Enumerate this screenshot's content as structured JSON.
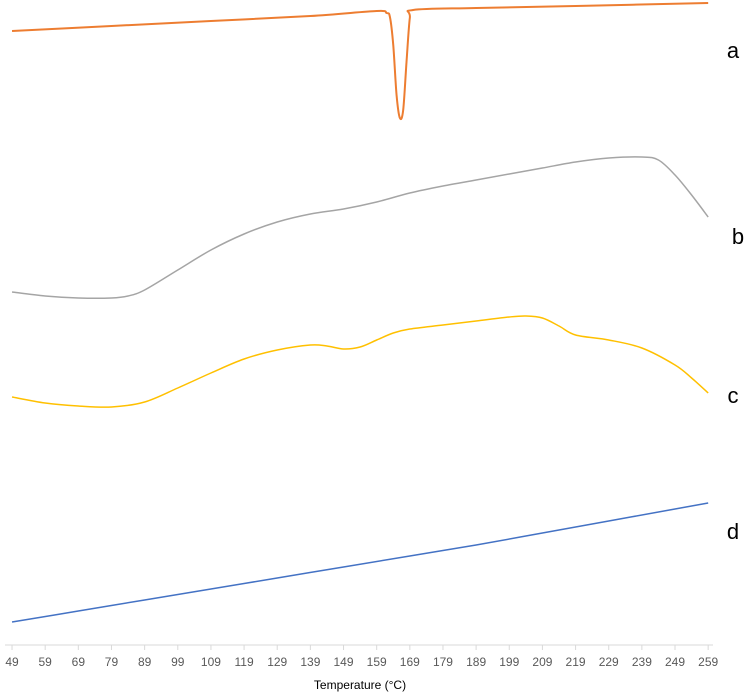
{
  "chart_data": {
    "type": "line",
    "x_label": "Temperature (°C)",
    "xlim": [
      47,
      261
    ],
    "xticks": [
      49,
      59,
      69,
      79,
      89,
      99,
      109,
      119,
      129,
      139,
      149,
      159,
      169,
      179,
      189,
      199,
      209,
      219,
      229,
      239,
      249,
      259
    ],
    "ylim": [
      0,
      645
    ],
    "series": [
      {
        "name": "a",
        "color": "#ed7d31",
        "x": [
          49,
          79,
          109,
          139,
          159,
          162,
          163,
          164,
          165,
          166,
          167,
          168,
          169,
          170,
          189,
          219,
          259
        ],
        "values": [
          614,
          619,
          624,
          629,
          634,
          632,
          628,
          600,
          550,
          527,
          535,
          583,
          627,
          635,
          637,
          639,
          642
        ]
      },
      {
        "name": "b",
        "color": "#a5a5a5",
        "x": [
          49,
          59,
          69,
          79,
          84,
          89,
          99,
          109,
          119,
          129,
          139,
          149,
          159,
          169,
          179,
          189,
          199,
          209,
          219,
          229,
          239,
          244,
          249,
          254,
          259
        ],
        "values": [
          353,
          349,
          347,
          347,
          349,
          355,
          375,
          395,
          411,
          423,
          431,
          436,
          443,
          452,
          459,
          465,
          471,
          477,
          483,
          487,
          488,
          485,
          470,
          450,
          428
        ]
      },
      {
        "name": "c",
        "color": "#ffc000",
        "x": [
          49,
          59,
          69,
          79,
          89,
          99,
          109,
          119,
          129,
          139,
          144,
          149,
          154,
          159,
          164,
          169,
          179,
          189,
          199,
          204,
          209,
          214,
          219,
          229,
          239,
          249,
          254,
          259
        ],
        "values": [
          248,
          242,
          239,
          238,
          243,
          257,
          272,
          286,
          295,
          300,
          299,
          296,
          298,
          305,
          312,
          316,
          320,
          324,
          328,
          329,
          327,
          319,
          310,
          305,
          297,
          280,
          267,
          252
        ]
      },
      {
        "name": "d",
        "color": "#4472c4",
        "x": [
          49,
          69,
          89,
          109,
          129,
          149,
          169,
          189,
          209,
          229,
          249,
          259
        ],
        "values": [
          23,
          34,
          45,
          56,
          67,
          78,
          89,
          100,
          112,
          124,
          136,
          142
        ]
      }
    ]
  }
}
